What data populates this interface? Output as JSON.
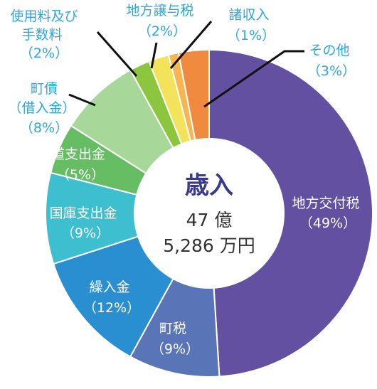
{
  "chart_data": {
    "type": "pie",
    "center_title": "歳入",
    "center_lines": [
      "47 億",
      "5,286 万円"
    ],
    "slices": [
      {
        "name": "地方交付税",
        "pct_label": "（49%）",
        "value": 49,
        "color": "#6350a0",
        "text_color": "#ffffff"
      },
      {
        "name": "町税",
        "pct_label": "（9%）",
        "value": 9,
        "color": "#5a74b8",
        "text_color": "#ffffff"
      },
      {
        "name": "繰入金",
        "pct_label": "（12%）",
        "value": 12,
        "color": "#2a8fd0",
        "text_color": "#ffffff"
      },
      {
        "name": "国庫支出金",
        "pct_label": "（9%）",
        "value": 9,
        "color": "#3ebfcf",
        "text_color": "#ffffff"
      },
      {
        "name": "道支出金",
        "pct_label": "（5%）",
        "value": 5,
        "color": "#66bd63",
        "text_color": "#ffffff"
      },
      {
        "name": "町債（借入金）",
        "pct_label": "（8%）",
        "value": 8,
        "color": "#a8d79a",
        "text_color": "#2aa7df"
      },
      {
        "name": "使用料及び手数料",
        "pct_label": "（2%）",
        "value": 2,
        "color": "#8cc63f",
        "text_color": "#2aa7df"
      },
      {
        "name": "地方譲与税",
        "pct_label": "（2%）",
        "value": 2,
        "color": "#f3e35a",
        "text_color": "#2aa7df"
      },
      {
        "name": "諸収入",
        "pct_label": "（1%）",
        "value": 1,
        "color": "#f8b552",
        "text_color": "#2aa7df"
      },
      {
        "name": "その他",
        "pct_label": "（3%）",
        "value": 3,
        "color": "#f08a3e",
        "text_color": "#2aa7df"
      }
    ]
  }
}
